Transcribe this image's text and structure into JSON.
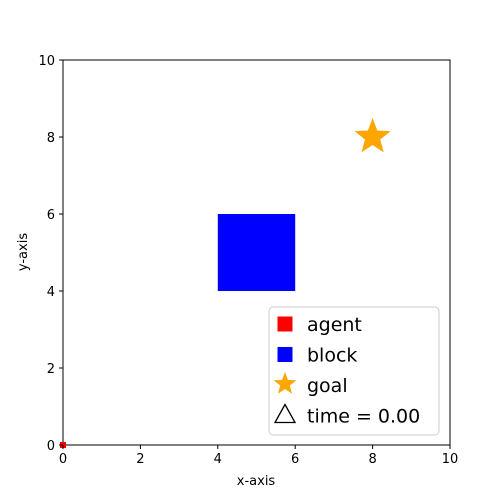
{
  "chart_data": {
    "type": "scatter",
    "xlabel": "x-axis",
    "ylabel": "y-axis",
    "xlim": [
      0,
      10
    ],
    "ylim": [
      0,
      10
    ],
    "xticks": [
      "0",
      "2",
      "4",
      "6",
      "8",
      "10"
    ],
    "yticks": [
      "0",
      "2",
      "4",
      "6",
      "8",
      "10"
    ],
    "grid": false,
    "legend_position": "lower-right",
    "objects": {
      "agent": {
        "label": "agent",
        "x": 0,
        "y": 0,
        "marker": "square",
        "color": "#ff0000"
      },
      "block": {
        "label": "block",
        "x0": 4,
        "y0": 4,
        "x1": 6,
        "y1": 6,
        "color": "#0000ff"
      },
      "goal": {
        "label": "goal",
        "x": 8,
        "y": 8,
        "marker": "star",
        "color": "#ffa500"
      }
    },
    "legend": [
      {
        "key": "agent",
        "label": "agent",
        "marker": "square",
        "color": "#ff0000"
      },
      {
        "key": "block",
        "label": "block",
        "marker": "square",
        "color": "#0000ff"
      },
      {
        "key": "goal",
        "label": "goal",
        "marker": "star",
        "color": "#ffa500"
      },
      {
        "key": "time",
        "label": "time = 0.00",
        "marker": "triangle-outline",
        "color": "#000000"
      }
    ]
  }
}
